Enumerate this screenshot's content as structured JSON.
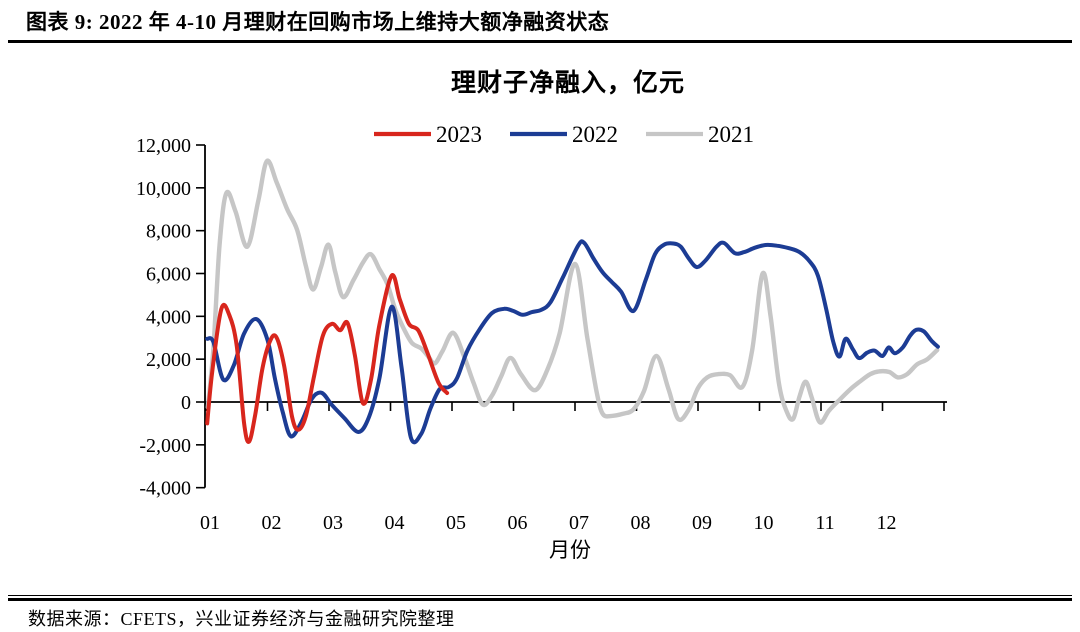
{
  "header": {
    "title": "图表 9:  2022 年 4-10 月理财在回购市场上维持大额净融资状态"
  },
  "footer": {
    "source": "数据来源：CFETS，兴业证券经济与金融研究院整理"
  },
  "chart_data": {
    "type": "line",
    "title": "理财子净融入，亿元",
    "xlabel": "月份",
    "ylabel": "",
    "ylim": [
      -4000,
      12000
    ],
    "xlim_months": [
      1,
      13.05
    ],
    "grid": false,
    "legend_position": "top",
    "y_ticks": [
      {
        "value": 12000,
        "label": "12,000"
      },
      {
        "value": 10000,
        "label": "10,000"
      },
      {
        "value": 8000,
        "label": "8,000"
      },
      {
        "value": 6000,
        "label": "6,000"
      },
      {
        "value": 4000,
        "label": "4,000"
      },
      {
        "value": 2000,
        "label": "2,000"
      },
      {
        "value": 0,
        "label": "0"
      },
      {
        "value": -2000,
        "label": "-2,000"
      },
      {
        "value": -4000,
        "label": "-4,000"
      }
    ],
    "x_ticks": [
      {
        "month": 1,
        "label": "01"
      },
      {
        "month": 2,
        "label": "02"
      },
      {
        "month": 3,
        "label": "03"
      },
      {
        "month": 4,
        "label": "04"
      },
      {
        "month": 5,
        "label": "05"
      },
      {
        "month": 6,
        "label": "06"
      },
      {
        "month": 7,
        "label": "07"
      },
      {
        "month": 8,
        "label": "08"
      },
      {
        "month": 9,
        "label": "09"
      },
      {
        "month": 10,
        "label": "10"
      },
      {
        "month": 11,
        "label": "11"
      },
      {
        "month": 12,
        "label": "12"
      }
    ],
    "legend": [
      {
        "label": "2023",
        "color": "#d8261d"
      },
      {
        "label": "2022",
        "color": "#1c3c94"
      },
      {
        "label": "2021",
        "color": "#c6c6c6"
      }
    ],
    "series": [
      {
        "name": "2021",
        "color": "#c6c6c6",
        "points": [
          [
            1.03,
            -250
          ],
          [
            1.12,
            2500
          ],
          [
            1.22,
            7300
          ],
          [
            1.33,
            9750
          ],
          [
            1.48,
            8900
          ],
          [
            1.67,
            7250
          ],
          [
            1.85,
            9400
          ],
          [
            1.99,
            11250
          ],
          [
            2.15,
            10250
          ],
          [
            2.32,
            9000
          ],
          [
            2.48,
            8050
          ],
          [
            2.62,
            6400
          ],
          [
            2.74,
            5250
          ],
          [
            2.87,
            6300
          ],
          [
            2.99,
            7350
          ],
          [
            3.1,
            6100
          ],
          [
            3.23,
            4900
          ],
          [
            3.4,
            5700
          ],
          [
            3.55,
            6500
          ],
          [
            3.68,
            6900
          ],
          [
            3.82,
            6200
          ],
          [
            3.95,
            5500
          ],
          [
            4.08,
            4300
          ],
          [
            4.22,
            3400
          ],
          [
            4.35,
            2750
          ],
          [
            4.5,
            2500
          ],
          [
            4.62,
            2100
          ],
          [
            4.72,
            1800
          ],
          [
            4.85,
            2400
          ],
          [
            5.02,
            3230
          ],
          [
            5.2,
            2100
          ],
          [
            5.35,
            900
          ],
          [
            5.5,
            -120
          ],
          [
            5.65,
            300
          ],
          [
            5.8,
            1200
          ],
          [
            5.95,
            2060
          ],
          [
            6.12,
            1300
          ],
          [
            6.35,
            550
          ],
          [
            6.55,
            1500
          ],
          [
            6.75,
            3200
          ],
          [
            7.0,
            6450
          ],
          [
            7.2,
            3000
          ],
          [
            7.35,
            500
          ],
          [
            7.45,
            -550
          ],
          [
            7.6,
            -650
          ],
          [
            7.78,
            -550
          ],
          [
            7.95,
            -350
          ],
          [
            8.12,
            500
          ],
          [
            8.32,
            2150
          ],
          [
            8.52,
            600
          ],
          [
            8.68,
            -800
          ],
          [
            8.85,
            -350
          ],
          [
            9.0,
            650
          ],
          [
            9.15,
            1150
          ],
          [
            9.32,
            1300
          ],
          [
            9.52,
            1250
          ],
          [
            9.72,
            700
          ],
          [
            9.88,
            2400
          ],
          [
            10.05,
            6000
          ],
          [
            10.18,
            4000
          ],
          [
            10.32,
            800
          ],
          [
            10.45,
            -500
          ],
          [
            10.55,
            -780
          ],
          [
            10.65,
            250
          ],
          [
            10.75,
            950
          ],
          [
            10.85,
            200
          ],
          [
            10.98,
            -950
          ],
          [
            11.13,
            -400
          ],
          [
            11.3,
            100
          ],
          [
            11.48,
            600
          ],
          [
            11.63,
            950
          ],
          [
            11.8,
            1300
          ],
          [
            11.94,
            1430
          ],
          [
            12.11,
            1400
          ],
          [
            12.25,
            1150
          ],
          [
            12.4,
            1300
          ],
          [
            12.56,
            1750
          ],
          [
            12.73,
            2000
          ],
          [
            12.89,
            2430
          ]
        ]
      },
      {
        "name": "2022",
        "color": "#1c3c94",
        "points": [
          [
            1.02,
            2950
          ],
          [
            1.12,
            2800
          ],
          [
            1.28,
            1050
          ],
          [
            1.45,
            1700
          ],
          [
            1.62,
            3200
          ],
          [
            1.82,
            3870
          ],
          [
            2.0,
            2900
          ],
          [
            2.12,
            1100
          ],
          [
            2.25,
            -500
          ],
          [
            2.38,
            -1600
          ],
          [
            2.55,
            -950
          ],
          [
            2.72,
            150
          ],
          [
            2.88,
            430
          ],
          [
            3.05,
            -150
          ],
          [
            3.25,
            -750
          ],
          [
            3.48,
            -1400
          ],
          [
            3.65,
            -700
          ],
          [
            3.82,
            1100
          ],
          [
            4.02,
            4450
          ],
          [
            4.18,
            1600
          ],
          [
            4.33,
            -1650
          ],
          [
            4.5,
            -1480
          ],
          [
            4.65,
            -300
          ],
          [
            4.8,
            600
          ],
          [
            4.95,
            700
          ],
          [
            5.08,
            1100
          ],
          [
            5.25,
            2400
          ],
          [
            5.45,
            3400
          ],
          [
            5.65,
            4150
          ],
          [
            5.85,
            4350
          ],
          [
            6.0,
            4250
          ],
          [
            6.15,
            4070
          ],
          [
            6.3,
            4200
          ],
          [
            6.45,
            4300
          ],
          [
            6.6,
            4650
          ],
          [
            6.8,
            5800
          ],
          [
            7.05,
            7300
          ],
          [
            7.15,
            7430
          ],
          [
            7.3,
            6700
          ],
          [
            7.45,
            6050
          ],
          [
            7.6,
            5600
          ],
          [
            7.75,
            5150
          ],
          [
            7.95,
            4250
          ],
          [
            8.15,
            5700
          ],
          [
            8.3,
            6900
          ],
          [
            8.45,
            7350
          ],
          [
            8.6,
            7400
          ],
          [
            8.72,
            7250
          ],
          [
            8.85,
            6700
          ],
          [
            8.98,
            6300
          ],
          [
            9.12,
            6600
          ],
          [
            9.3,
            7250
          ],
          [
            9.42,
            7430
          ],
          [
            9.6,
            6950
          ],
          [
            9.75,
            7000
          ],
          [
            9.92,
            7200
          ],
          [
            10.1,
            7330
          ],
          [
            10.28,
            7300
          ],
          [
            10.48,
            7180
          ],
          [
            10.65,
            7000
          ],
          [
            10.82,
            6550
          ],
          [
            10.95,
            5900
          ],
          [
            11.08,
            4400
          ],
          [
            11.2,
            2800
          ],
          [
            11.3,
            2120
          ],
          [
            11.4,
            2950
          ],
          [
            11.52,
            2450
          ],
          [
            11.62,
            2050
          ],
          [
            11.75,
            2300
          ],
          [
            11.87,
            2400
          ],
          [
            12.0,
            2150
          ],
          [
            12.1,
            2550
          ],
          [
            12.2,
            2280
          ],
          [
            12.33,
            2550
          ],
          [
            12.45,
            3100
          ],
          [
            12.55,
            3370
          ],
          [
            12.67,
            3300
          ],
          [
            12.8,
            2850
          ],
          [
            12.9,
            2580
          ]
        ]
      },
      {
        "name": "2023",
        "color": "#d8261d",
        "points": [
          [
            1.02,
            -1000
          ],
          [
            1.1,
            1400
          ],
          [
            1.25,
            4350
          ],
          [
            1.38,
            4050
          ],
          [
            1.5,
            2600
          ],
          [
            1.62,
            -1000
          ],
          [
            1.7,
            -1850
          ],
          [
            1.8,
            -600
          ],
          [
            1.92,
            1600
          ],
          [
            2.05,
            2900
          ],
          [
            2.15,
            3000
          ],
          [
            2.27,
            1700
          ],
          [
            2.4,
            -700
          ],
          [
            2.5,
            -1300
          ],
          [
            2.62,
            -700
          ],
          [
            2.75,
            1100
          ],
          [
            2.9,
            3100
          ],
          [
            3.05,
            3650
          ],
          [
            3.18,
            3350
          ],
          [
            3.3,
            3700
          ],
          [
            3.42,
            2200
          ],
          [
            3.55,
            -50
          ],
          [
            3.68,
            1000
          ],
          [
            3.82,
            3600
          ],
          [
            4.02,
            5900
          ],
          [
            4.15,
            4800
          ],
          [
            4.3,
            3650
          ],
          [
            4.45,
            3350
          ],
          [
            4.6,
            2300
          ],
          [
            4.78,
            900
          ],
          [
            4.92,
            420
          ]
        ]
      }
    ]
  }
}
